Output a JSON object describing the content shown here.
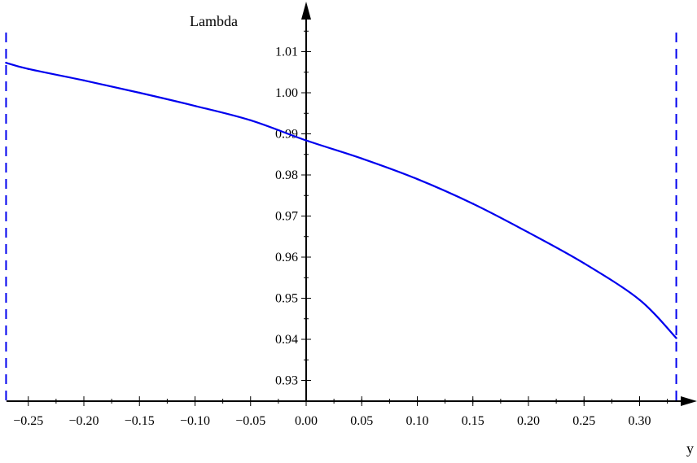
{
  "chart_data": {
    "type": "line",
    "title": "",
    "xlabel": "y",
    "ylabel": "Lambda",
    "xlim": [
      -0.27,
      0.333
    ],
    "ylim": [
      0.925,
      1.017
    ],
    "x_ticks": [
      "-0.25",
      "-0.20",
      "-0.15",
      "-0.10",
      "-0.05",
      "0.00",
      "0.05",
      "0.10",
      "0.15",
      "0.20",
      "0.25",
      "0.30"
    ],
    "y_ticks": [
      "0.93",
      "0.94",
      "0.95",
      "0.96",
      "0.97",
      "0.98",
      "0.99",
      "1.00",
      "1.01"
    ],
    "series": [
      {
        "color": "#0000ee",
        "x": [
          -0.27,
          -0.25,
          -0.2,
          -0.15,
          -0.1,
          -0.05,
          0.0,
          0.05,
          0.1,
          0.15,
          0.2,
          0.25,
          0.3,
          0.333
        ],
        "y": [
          1.0073,
          1.0058,
          1.003,
          1.0,
          0.9968,
          0.9933,
          0.9884,
          0.984,
          0.979,
          0.973,
          0.966,
          0.9585,
          0.9496,
          0.9403
        ]
      }
    ],
    "vertical_asymptotes": {
      "x": [
        -0.27,
        0.333
      ],
      "style": "dashed",
      "color": "#0000ee"
    },
    "grid": false,
    "legend": "none"
  }
}
